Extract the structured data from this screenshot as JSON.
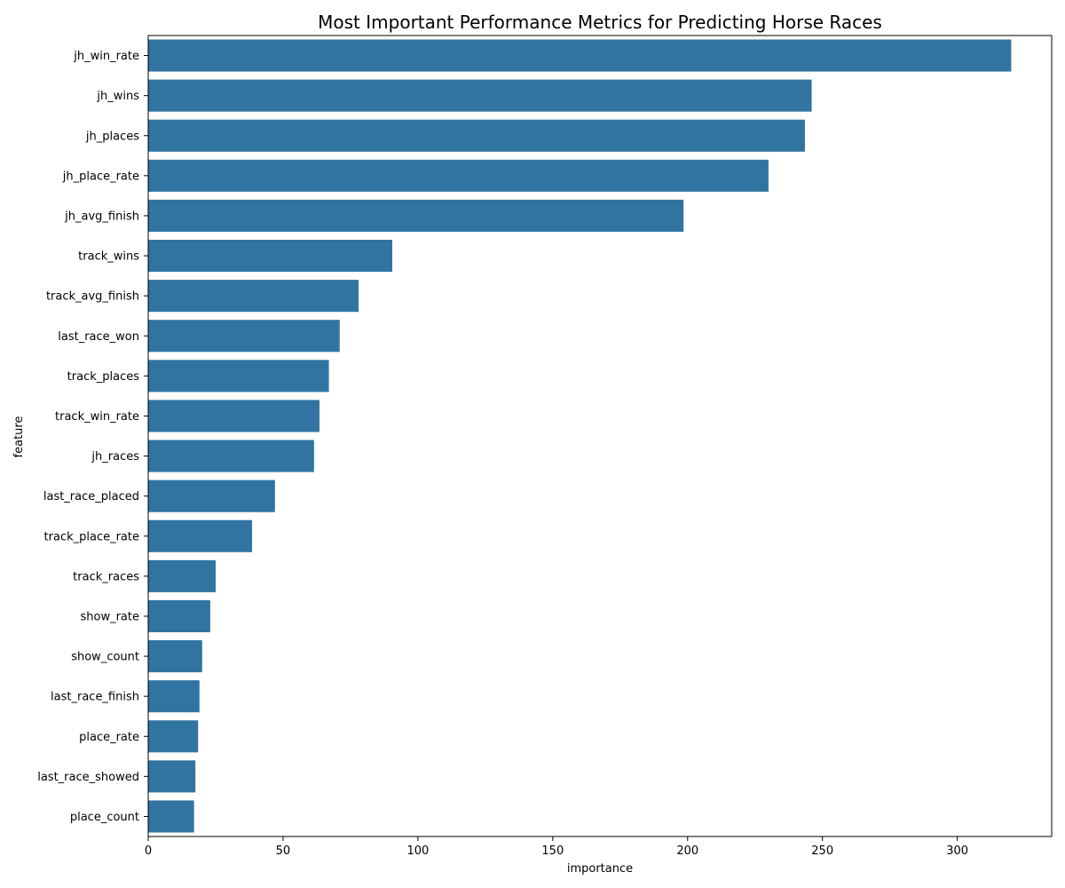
{
  "chart_data": {
    "type": "bar",
    "orientation": "horizontal",
    "title": "Most Important Performance Metrics for Predicting Horse Races",
    "xlabel": "importance",
    "ylabel": "feature",
    "xlim": [
      0,
      335
    ],
    "xticks": [
      0,
      50,
      100,
      150,
      200,
      250,
      300
    ],
    "grid": false,
    "bar_color": "#3274a1",
    "categories": [
      "jh_win_rate",
      "jh_wins",
      "jh_places",
      "jh_place_rate",
      "jh_avg_finish",
      "track_wins",
      "track_avg_finish",
      "last_race_won",
      "track_places",
      "track_win_rate",
      "jh_races",
      "last_race_placed",
      "track_place_rate",
      "track_races",
      "show_rate",
      "show_count",
      "last_race_finish",
      "place_rate",
      "last_race_showed",
      "place_count"
    ],
    "values": [
      320,
      246,
      243.5,
      230,
      198.5,
      90.5,
      78,
      71,
      67,
      63.5,
      61.5,
      47,
      38.5,
      25,
      23,
      20,
      19,
      18.5,
      17.5,
      17
    ]
  }
}
